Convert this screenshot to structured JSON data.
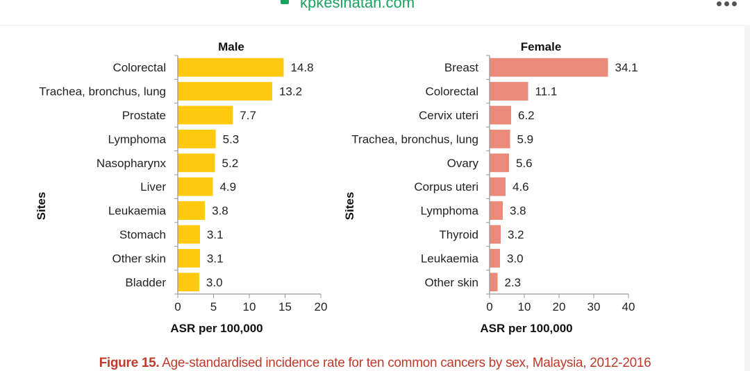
{
  "browser": {
    "url_text": "kpkesihatan.com",
    "menu_icon": "more-dots-icon",
    "secure_icon": "lock-badge-icon"
  },
  "caption": {
    "label": "Figure 15.",
    "text": " Age-standardised incidence rate for ten common cancers by sex, Malaysia, 2012-2016",
    "color": "#c0392b"
  },
  "chart_data": [
    {
      "type": "bar",
      "orientation": "horizontal",
      "title": "Male",
      "xlabel": "ASR per 100,000",
      "ylabel": "Sites",
      "color": "#ffc90e",
      "xlim": [
        0,
        20
      ],
      "xticks": [
        0,
        5,
        10,
        15,
        20
      ],
      "categories": [
        "Colorectal",
        "Trachea, bronchus, lung",
        "Prostate",
        "Lymphoma",
        "Nasopharynx",
        "Liver",
        "Leukaemia",
        "Stomach",
        "Other skin",
        "Bladder"
      ],
      "values": [
        14.8,
        13.2,
        7.7,
        5.3,
        5.2,
        4.9,
        3.8,
        3.1,
        3.1,
        3.0
      ],
      "value_labels": [
        "14.8",
        "13.2",
        "7.7",
        "5.3",
        "5.2",
        "4.9",
        "3.8",
        "3.1",
        "3.1",
        "3.0"
      ],
      "grid": false
    },
    {
      "type": "bar",
      "orientation": "horizontal",
      "title": "Female",
      "xlabel": "ASR per 100,000",
      "ylabel": "Sites",
      "color": "#ea8a78",
      "xlim": [
        0,
        40
      ],
      "xticks": [
        0,
        10,
        20,
        30,
        40
      ],
      "categories": [
        "Breast",
        "Colorectal",
        "Cervix uteri",
        "Trachea, bronchus, lung",
        "Ovary",
        "Corpus uteri",
        "Lymphoma",
        "Thyroid",
        "Leukaemia",
        "Other skin"
      ],
      "values": [
        34.1,
        11.1,
        6.2,
        5.9,
        5.6,
        4.6,
        3.8,
        3.2,
        3.0,
        2.3
      ],
      "value_labels": [
        "34.1",
        "11.1",
        "6.2",
        "5.9",
        "5.6",
        "4.6",
        "3.8",
        "3.2",
        "3.0",
        "2.3"
      ],
      "grid": false
    }
  ]
}
